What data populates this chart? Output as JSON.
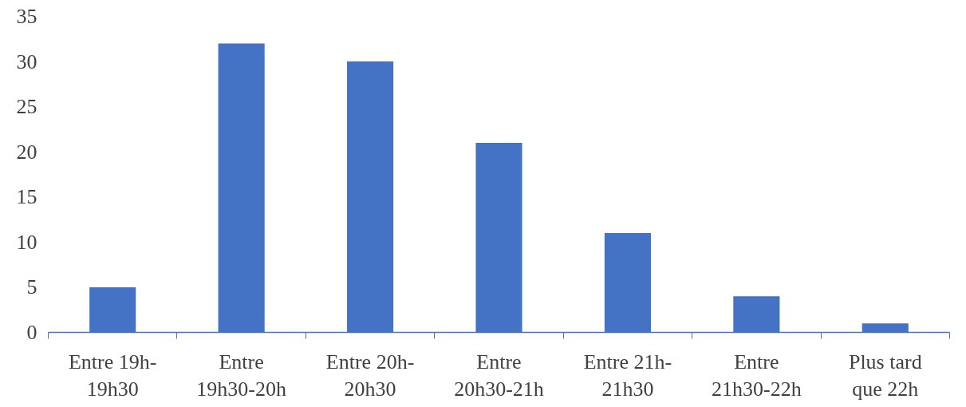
{
  "chart_data": {
    "type": "bar",
    "categories": [
      "Entre 19h-\n19h30",
      "Entre\n19h30-20h",
      "Entre 20h-\n20h30",
      "Entre\n20h30-21h",
      "Entre 21h-\n21h30",
      "Entre\n21h30-22h",
      "Plus tard\nque 22h"
    ],
    "values": [
      5,
      32,
      30,
      21,
      11,
      4,
      1
    ],
    "color": "#4472c4",
    "ylim": [
      0,
      35
    ],
    "yticks": [
      0,
      5,
      10,
      15,
      20,
      25,
      30,
      35
    ],
    "grid": false
  }
}
